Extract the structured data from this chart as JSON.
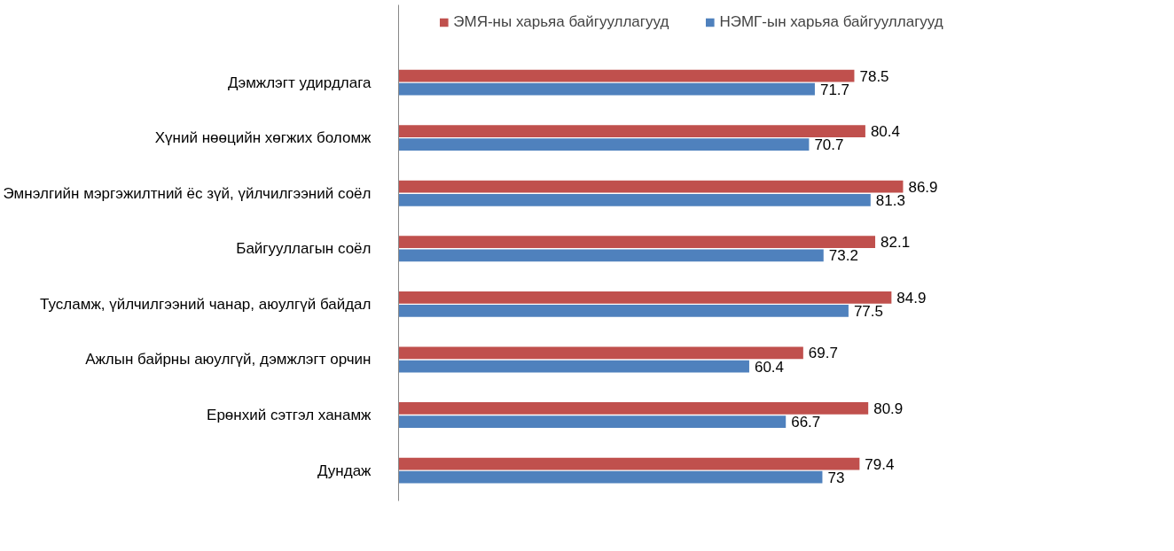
{
  "chart_data": {
    "type": "bar",
    "orientation": "horizontal",
    "data_labels": true,
    "legend": "top",
    "grid": false,
    "categories": [
      "Дэмжлэгт удирдлага",
      "Хүний нөөцийн хөгжих боломж",
      "Эмнэлгийн мэргэжилтний ёс зүй, үйлчилгээний соёл",
      "Байгууллагын соёл",
      "Тусламж, үйлчилгээний чанар, аюулгүй байдал",
      "Ажлын байрны аюулгүй, дэмжлэгт орчин",
      "Ерөнхий сэтгэл ханамж",
      "Дундаж"
    ],
    "series": [
      {
        "name": "ЭМЯ-ны харьяа байгууллагууд",
        "color": "#c0504d",
        "values": [
          78.5,
          80.4,
          86.9,
          82.1,
          84.9,
          69.7,
          80.9,
          79.4
        ]
      },
      {
        "name": "НЭМГ-ын харьяа байгууллагууд",
        "color": "#4f81bd",
        "values": [
          71.7,
          70.7,
          81.3,
          73.2,
          77.5,
          60.4,
          66.7,
          73
        ]
      }
    ]
  }
}
